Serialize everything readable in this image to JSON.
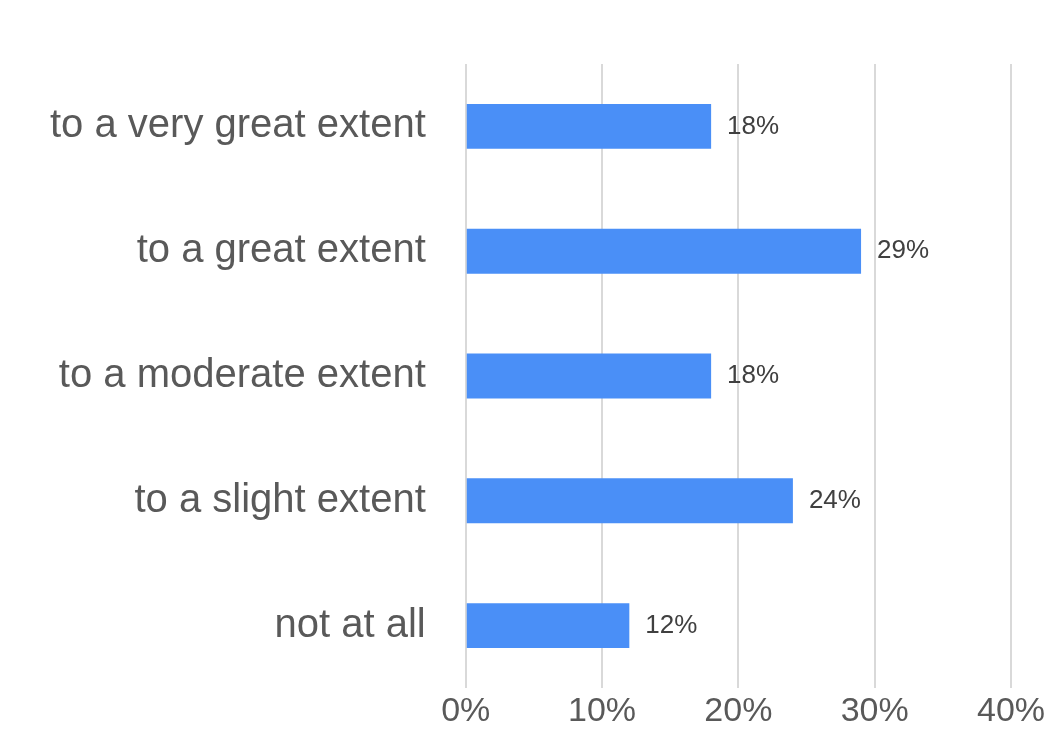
{
  "chart_data": {
    "type": "bar",
    "orientation": "horizontal",
    "categories": [
      "to a very great extent",
      "to a great extent",
      "to a moderate extent",
      "to a slight extent",
      "not at all"
    ],
    "values": [
      18,
      29,
      18,
      24,
      12
    ],
    "color": "#4a8ff7",
    "xlim": [
      0,
      40
    ],
    "xticks": [
      {
        "value": 0,
        "label": "0%"
      },
      {
        "value": 10,
        "label": "10%"
      },
      {
        "value": 20,
        "label": "20%"
      },
      {
        "value": 30,
        "label": "30%"
      },
      {
        "value": 40,
        "label": "40%"
      }
    ],
    "value_labels": [
      "18%",
      "29%",
      "18%",
      "24%",
      "12%"
    ],
    "grid": "x",
    "legend": false
  }
}
